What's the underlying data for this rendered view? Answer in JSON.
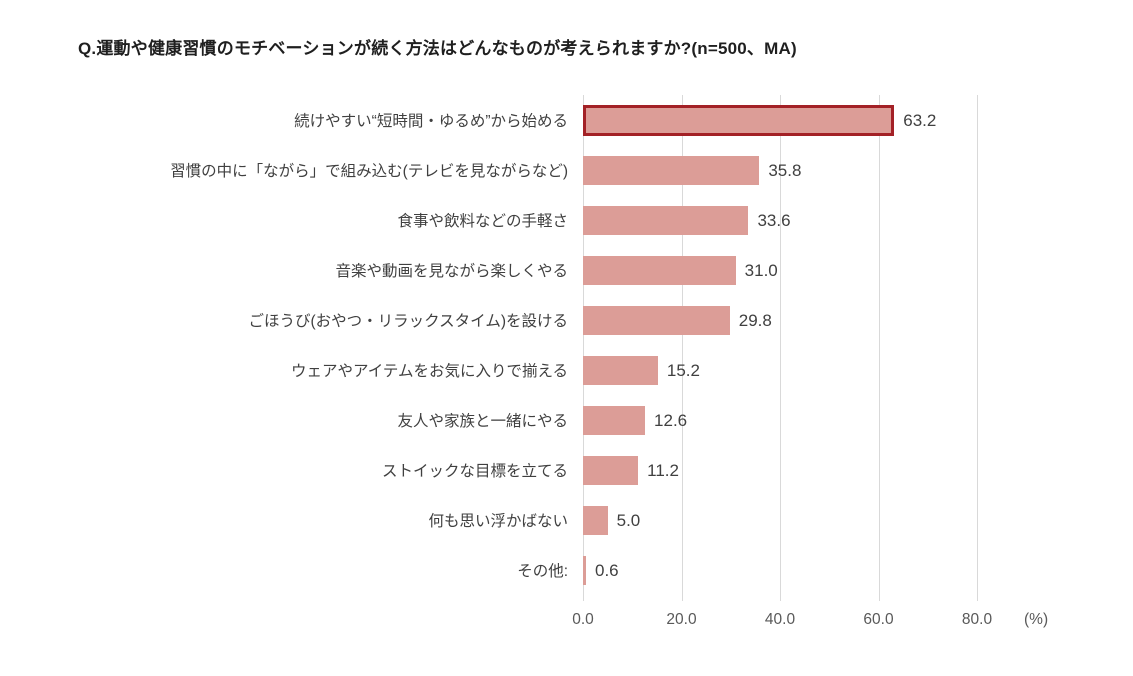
{
  "page": {
    "background": "#ffffff"
  },
  "chart_data": {
    "type": "bar",
    "orientation": "horizontal",
    "title": "Q.運動や健康習慣のモチベーションが続く方法はどんなものが考えられますか?(n=500、MA)",
    "categories": [
      "続けやすい“短時間・ゆるめ”から始める",
      "習慣の中に「ながら」で組み込む(テレビを見ながらなど)",
      "食事や飲料などの手軽さ",
      "音楽や動画を見ながら楽しくやる",
      "ごほうび(おやつ・リラックスタイム)を設ける",
      "ウェアやアイテムをお気に入りで揃える",
      "友人や家族と一緒にやる",
      "ストイックな目標を立てる",
      "何も思い浮かばない",
      "その他:"
    ],
    "values": [
      63.2,
      35.8,
      33.6,
      31.0,
      29.8,
      15.2,
      12.6,
      11.2,
      5.0,
      0.6
    ],
    "value_labels": [
      "63.2",
      "35.8",
      "33.6",
      "31.0",
      "29.8",
      "15.2",
      "12.6",
      "11.2",
      "5.0",
      "0.6"
    ],
    "highlighted_index": 0,
    "xlim": [
      0,
      80
    ],
    "x_ticks": [
      0,
      20,
      40,
      60,
      80
    ],
    "x_tick_labels": [
      "0.0",
      "20.0",
      "40.0",
      "60.0",
      "80.0"
    ],
    "unit_label": "(%)",
    "grid": "vertical",
    "legend": "none",
    "colors": {
      "bar_fill": "#DC9D97",
      "highlight_border": "#A32126",
      "gridline": "#D9D9D9",
      "tick_text": "#595959",
      "value_text": "#404040",
      "category_text": "#404040",
      "title_text": "#1F1F1F"
    }
  }
}
